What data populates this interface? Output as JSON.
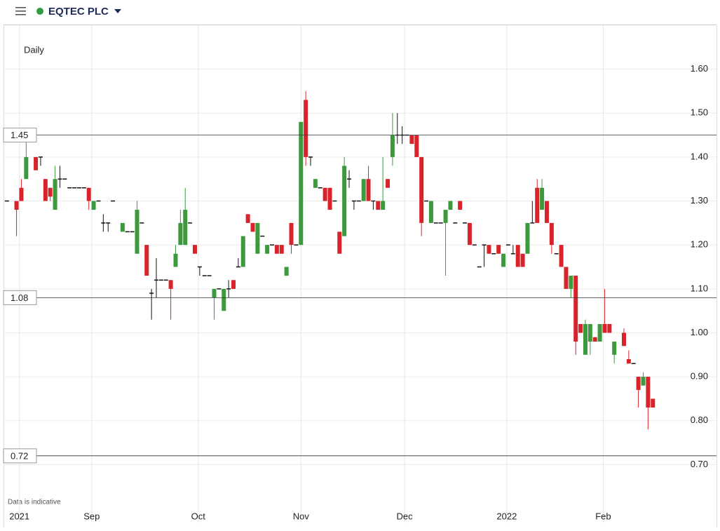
{
  "chart_data": {
    "type": "candlestick",
    "title": "EQTEC PLC",
    "interval": "Daily",
    "footnote": "Data is indicative",
    "up_color": "#3c9a3c",
    "down_color": "#d8232a",
    "flat_color": "#111111",
    "grid": true,
    "xlim": [
      0.3,
      148.2
    ],
    "ylim": [
      0.6,
      1.7
    ],
    "xticks": [
      {
        "value": 3.6,
        "label": "2021"
      },
      {
        "value": 18.6,
        "label": "Sep"
      },
      {
        "value": 40.7,
        "label": "Oct"
      },
      {
        "value": 62.0,
        "label": "Nov"
      },
      {
        "value": 83.5,
        "label": "Dec"
      },
      {
        "value": 104.7,
        "label": "2022"
      },
      {
        "value": 124.7,
        "label": "Feb"
      }
    ],
    "yticks": [
      {
        "value": 0.7,
        "label": "0.70"
      },
      {
        "value": 0.8,
        "label": "0.80"
      },
      {
        "value": 0.9,
        "label": "0.90"
      },
      {
        "value": 1.0,
        "label": "1.00"
      },
      {
        "value": 1.1,
        "label": "1.10"
      },
      {
        "value": 1.2,
        "label": "1.20"
      },
      {
        "value": 1.3,
        "label": "1.30"
      },
      {
        "value": 1.4,
        "label": "1.40"
      },
      {
        "value": 1.5,
        "label": "1.50"
      },
      {
        "value": 1.6,
        "label": "1.60"
      }
    ],
    "reference_lines": [
      1.45,
      1.08,
      0.72
    ],
    "x": [
      1,
      3,
      4,
      5,
      7,
      8,
      9,
      10,
      11,
      12,
      13,
      14,
      15,
      16,
      17,
      18,
      19,
      20,
      21,
      22,
      23,
      25,
      26,
      27,
      28,
      29,
      30,
      31,
      32,
      33,
      34,
      35,
      36,
      37,
      38,
      39,
      40,
      41,
      42,
      43,
      44,
      45,
      46,
      47,
      48,
      49,
      50,
      51,
      52,
      53,
      54,
      55,
      56,
      57,
      58,
      59,
      60,
      61,
      62,
      63,
      64,
      65,
      66,
      67,
      68,
      69,
      70,
      71,
      72,
      73,
      74,
      75,
      76,
      77,
      78,
      79,
      80,
      81,
      82,
      83,
      84,
      85,
      86,
      87,
      88,
      89,
      90,
      91,
      92,
      93,
      94,
      95,
      96,
      97,
      98,
      99,
      100,
      101,
      102,
      103,
      104,
      105,
      106,
      107,
      108,
      109,
      110,
      111,
      112,
      113,
      114,
      115,
      116,
      117,
      118,
      119,
      120,
      121,
      122,
      123,
      124,
      125,
      126,
      127,
      129,
      130,
      131,
      132,
      133,
      134,
      135
    ],
    "open": [
      1.3,
      1.3,
      1.33,
      1.35,
      1.4,
      1.4,
      1.35,
      1.33,
      1.28,
      1.35,
      1.35,
      1.33,
      1.33,
      1.33,
      1.33,
      1.33,
      1.28,
      1.3,
      1.25,
      1.25,
      1.3,
      1.23,
      1.23,
      1.23,
      1.18,
      1.25,
      1.2,
      1.09,
      1.12,
      1.12,
      1.12,
      1.12,
      1.15,
      1.2,
      1.2,
      1.25,
      1.2,
      1.15,
      1.13,
      1.13,
      1.08,
      1.1,
      1.05,
      1.1,
      1.12,
      1.15,
      1.15,
      1.27,
      1.25,
      1.18,
      1.22,
      1.18,
      1.2,
      1.2,
      1.2,
      1.13,
      1.25,
      1.2,
      1.2,
      1.53,
      1.4,
      1.33,
      1.33,
      1.33,
      1.33,
      1.3,
      1.23,
      1.22,
      1.35,
      1.3,
      1.3,
      1.3,
      1.35,
      1.3,
      1.3,
      1.28,
      1.35,
      1.4,
      1.45,
      1.45,
      1.45,
      1.45,
      1.45,
      1.4,
      1.3,
      1.25,
      1.25,
      1.25,
      1.25,
      1.28,
      1.25,
      1.3,
      1.25,
      1.25,
      1.2,
      1.15,
      1.2,
      1.2,
      1.18,
      1.2,
      1.15,
      1.2,
      1.18,
      1.2,
      1.18,
      1.18,
      1.25,
      1.33,
      1.28,
      1.3,
      1.25,
      1.18,
      1.2,
      1.15,
      1.1,
      1.13,
      1.02,
      0.95,
      0.98,
      0.99,
      0.98,
      1.02,
      1.02,
      0.95,
      1.0,
      0.94,
      0.93,
      0.9,
      0.88,
      0.9,
      0.85
    ],
    "high": [
      1.3,
      1.3,
      1.35,
      1.45,
      1.4,
      1.4,
      1.35,
      1.33,
      1.38,
      1.38,
      1.35,
      1.33,
      1.33,
      1.33,
      1.33,
      1.33,
      1.3,
      1.3,
      1.27,
      1.25,
      1.3,
      1.25,
      1.23,
      1.23,
      1.3,
      1.25,
      1.2,
      1.1,
      1.17,
      1.12,
      1.12,
      1.12,
      1.2,
      1.28,
      1.33,
      1.25,
      1.2,
      1.15,
      1.13,
      1.13,
      1.1,
      1.1,
      1.1,
      1.12,
      1.12,
      1.17,
      1.22,
      1.27,
      1.25,
      1.25,
      1.22,
      1.2,
      1.2,
      1.2,
      1.2,
      1.15,
      1.25,
      1.2,
      1.48,
      1.55,
      1.4,
      1.35,
      1.33,
      1.33,
      1.33,
      1.3,
      1.23,
      1.4,
      1.37,
      1.3,
      1.3,
      1.35,
      1.38,
      1.3,
      1.3,
      1.4,
      1.35,
      1.5,
      1.5,
      1.47,
      1.45,
      1.45,
      1.45,
      1.4,
      1.3,
      1.3,
      1.25,
      1.25,
      1.28,
      1.3,
      1.25,
      1.3,
      1.25,
      1.25,
      1.2,
      1.15,
      1.2,
      1.2,
      1.18,
      1.2,
      1.18,
      1.2,
      1.2,
      1.2,
      1.18,
      1.25,
      1.3,
      1.35,
      1.35,
      1.3,
      1.25,
      1.18,
      1.2,
      1.15,
      1.13,
      1.13,
      1.02,
      1.03,
      1.02,
      0.99,
      1.02,
      1.1,
      1.02,
      0.98,
      1.01,
      0.96,
      0.93,
      0.9,
      0.91,
      0.9,
      0.85
    ],
    "low": [
      1.3,
      1.22,
      1.3,
      1.35,
      1.37,
      1.38,
      1.3,
      1.3,
      1.28,
      1.33,
      1.35,
      1.33,
      1.33,
      1.33,
      1.33,
      1.28,
      1.28,
      1.3,
      1.23,
      1.23,
      1.3,
      1.23,
      1.23,
      1.23,
      1.18,
      1.25,
      1.13,
      1.03,
      1.08,
      1.12,
      1.12,
      1.03,
      1.15,
      1.2,
      1.2,
      1.25,
      1.18,
      1.13,
      1.13,
      1.13,
      1.03,
      1.1,
      1.05,
      1.08,
      1.1,
      1.15,
      1.15,
      1.25,
      1.23,
      1.18,
      1.22,
      1.18,
      1.2,
      1.18,
      1.18,
      1.13,
      1.18,
      1.2,
      1.2,
      1.38,
      1.38,
      1.33,
      1.33,
      1.3,
      1.28,
      1.3,
      1.18,
      1.22,
      1.33,
      1.28,
      1.3,
      1.3,
      1.3,
      1.28,
      1.28,
      1.28,
      1.33,
      1.38,
      1.43,
      1.43,
      1.45,
      1.43,
      1.4,
      1.22,
      1.3,
      1.25,
      1.25,
      1.25,
      1.13,
      1.28,
      1.25,
      1.28,
      1.25,
      1.2,
      1.2,
      1.15,
      1.15,
      1.18,
      1.18,
      1.18,
      1.15,
      1.2,
      1.18,
      1.15,
      1.15,
      1.18,
      1.25,
      1.25,
      1.28,
      1.25,
      1.18,
      1.18,
      1.15,
      1.1,
      1.08,
      0.95,
      1.0,
      0.95,
      0.95,
      0.98,
      0.98,
      1.0,
      1.0,
      0.93,
      0.97,
      0.93,
      0.93,
      0.83,
      0.88,
      0.78,
      0.83
    ],
    "close": [
      1.3,
      1.28,
      1.3,
      1.4,
      1.37,
      1.4,
      1.3,
      1.31,
      1.35,
      1.35,
      1.35,
      1.33,
      1.33,
      1.33,
      1.33,
      1.3,
      1.3,
      1.3,
      1.25,
      1.25,
      1.3,
      1.25,
      1.23,
      1.23,
      1.28,
      1.25,
      1.13,
      1.09,
      1.12,
      1.12,
      1.12,
      1.1,
      1.18,
      1.25,
      1.28,
      1.25,
      1.18,
      1.15,
      1.13,
      1.13,
      1.1,
      1.1,
      1.1,
      1.1,
      1.1,
      1.15,
      1.22,
      1.25,
      1.23,
      1.25,
      1.22,
      1.2,
      1.2,
      1.18,
      1.18,
      1.15,
      1.2,
      1.2,
      1.48,
      1.4,
      1.4,
      1.35,
      1.33,
      1.3,
      1.28,
      1.3,
      1.18,
      1.38,
      1.35,
      1.3,
      1.3,
      1.35,
      1.3,
      1.3,
      1.28,
      1.3,
      1.33,
      1.45,
      1.45,
      1.45,
      1.45,
      1.43,
      1.4,
      1.25,
      1.3,
      1.3,
      1.25,
      1.25,
      1.28,
      1.3,
      1.25,
      1.28,
      1.25,
      1.2,
      1.2,
      1.15,
      1.2,
      1.18,
      1.18,
      1.18,
      1.18,
      1.2,
      1.18,
      1.15,
      1.15,
      1.25,
      1.25,
      1.25,
      1.33,
      1.25,
      1.2,
      1.18,
      1.15,
      1.1,
      1.13,
      0.98,
      1.0,
      1.02,
      1.02,
      0.98,
      1.02,
      1.0,
      1.0,
      0.98,
      0.97,
      0.93,
      0.93,
      0.87,
      0.9,
      0.83,
      0.83
    ]
  }
}
